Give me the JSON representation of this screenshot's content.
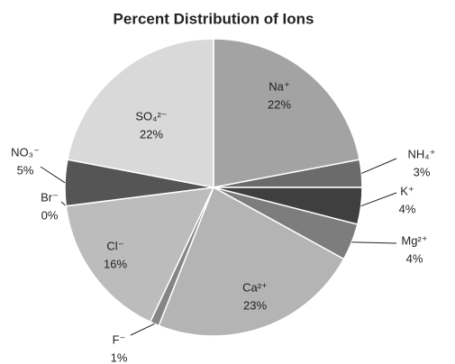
{
  "chart_data": {
    "type": "pie",
    "title": "Percent Distribution of Ions",
    "categories": [
      "Na⁺",
      "NH₄⁺",
      "K⁺",
      "Mg²⁺",
      "Ca²⁺",
      "F⁻",
      "Cl⁻",
      "Br⁻",
      "NO₃⁻",
      "SO₄²⁻"
    ],
    "values": [
      22,
      3,
      4,
      4,
      23,
      1,
      16,
      0,
      5,
      22
    ],
    "value_labels": [
      "22%",
      "3%",
      "4%",
      "4%",
      "23%",
      "1%",
      "16%",
      "0%",
      "5%",
      "22%"
    ],
    "colors": [
      "#a3a3a3",
      "#6b6b6b",
      "#3f3f3f",
      "#7d7d7d",
      "#b4b4b4",
      "#858585",
      "#bcbcbc",
      "#505050",
      "#555555",
      "#d9d9d9"
    ]
  }
}
